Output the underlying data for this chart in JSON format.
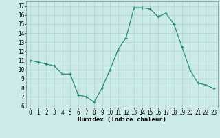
{
  "x": [
    0,
    1,
    2,
    3,
    4,
    5,
    6,
    7,
    8,
    9,
    10,
    11,
    12,
    13,
    14,
    15,
    16,
    17,
    18,
    19,
    20,
    21,
    22,
    23
  ],
  "y": [
    11.0,
    10.8,
    10.6,
    10.4,
    9.5,
    9.5,
    7.2,
    7.0,
    6.4,
    8.0,
    10.0,
    12.2,
    13.5,
    16.8,
    16.8,
    16.7,
    15.8,
    16.2,
    15.0,
    12.5,
    10.0,
    8.5,
    8.3,
    7.9
  ],
  "xlabel": "Humidex (Indice chaleur)",
  "xlim": [
    -0.5,
    23.5
  ],
  "ylim": [
    5.8,
    17.5
  ],
  "yticks": [
    6,
    7,
    8,
    9,
    10,
    11,
    12,
    13,
    14,
    15,
    16,
    17
  ],
  "xticks": [
    0,
    1,
    2,
    3,
    4,
    5,
    6,
    7,
    8,
    9,
    10,
    11,
    12,
    13,
    14,
    15,
    16,
    17,
    18,
    19,
    20,
    21,
    22,
    23
  ],
  "line_color": "#2a8a7a",
  "bg_color": "#cceae8",
  "grid_color": "#aad4d0",
  "label_fontsize": 6.5,
  "tick_fontsize": 5.5
}
